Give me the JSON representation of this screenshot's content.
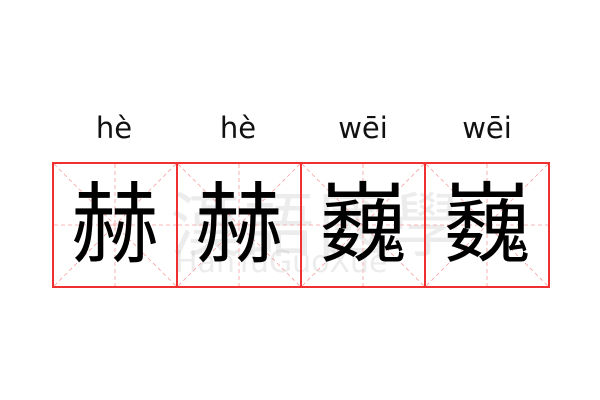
{
  "words": [
    {
      "pinyin": "hè",
      "char": "赫"
    },
    {
      "pinyin": "hè",
      "char": "赫"
    },
    {
      "pinyin": "wēi",
      "char": "巍"
    },
    {
      "pinyin": "wēi",
      "char": "巍"
    }
  ],
  "watermark": {
    "chinese": "漢語國學",
    "latin": "HanYuGuoXue"
  },
  "colors": {
    "border": "#f03030",
    "guide": "#f5a0a0"
  }
}
